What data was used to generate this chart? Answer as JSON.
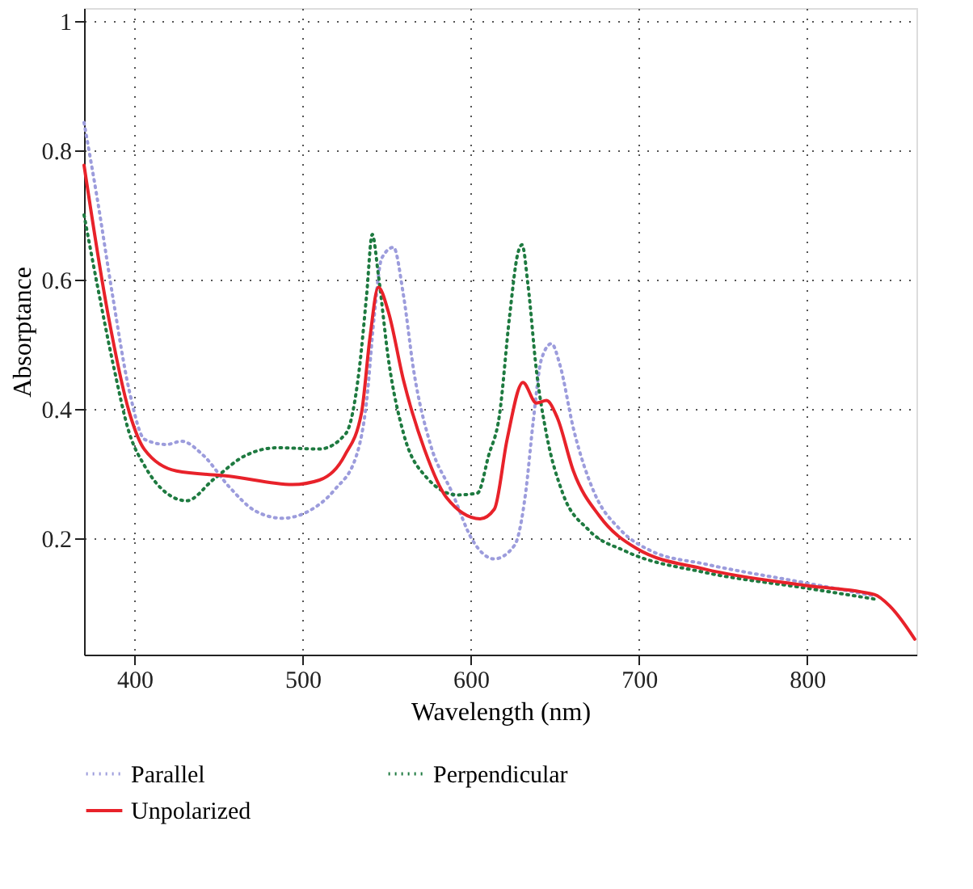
{
  "chart_data": {
    "type": "line",
    "xlabel": "Wavelength (nm)",
    "ylabel": "Absorptance",
    "xlim": [
      370,
      865
    ],
    "ylim": [
      0.02,
      1.02
    ],
    "xticks": [
      400,
      500,
      600,
      700,
      800
    ],
    "yticks": [
      0.2,
      0.4,
      0.6,
      0.8,
      1
    ],
    "grid": true,
    "legend": "bottom",
    "series": [
      {
        "name": "Parallel",
        "color": "#9c9cdc",
        "line_style": "dotted",
        "x": [
          370,
          378,
          387,
          397,
          406,
          419,
          428,
          441,
          456.5,
          472,
          488,
          503.6,
          519,
          532,
          538,
          542.5,
          547,
          554,
          560,
          566,
          576,
          589,
          601,
          614,
          626,
          632.6,
          637,
          642,
          648,
          653,
          661,
          673.5,
          689,
          707.6,
          739.5,
          799,
          840
        ],
        "values": [
          0.843,
          0.723,
          0.575,
          0.427,
          0.353,
          0.345,
          0.35,
          0.328,
          0.279,
          0.242,
          0.231,
          0.242,
          0.275,
          0.328,
          0.411,
          0.542,
          0.633,
          0.65,
          0.575,
          0.46,
          0.345,
          0.27,
          0.197,
          0.168,
          0.189,
          0.27,
          0.378,
          0.477,
          0.501,
          0.468,
          0.37,
          0.27,
          0.213,
          0.18,
          0.16,
          0.131,
          0.111
        ]
      },
      {
        "name": "Perpendicular",
        "color": "#1e7a40",
        "line_style": "dotted",
        "x": [
          370,
          378,
          387.4,
          397,
          406,
          419,
          431,
          447,
          466,
          485,
          510,
          525.7,
          533.6,
          538,
          541.4,
          545,
          551,
          560,
          573,
          592,
          604,
          610.6,
          617,
          623,
          628,
          630.5,
          634,
          639,
          645,
          654.6,
          670,
          692,
          739.5,
          799,
          840
        ],
        "values": [
          0.7,
          0.59,
          0.468,
          0.362,
          0.312,
          0.27,
          0.258,
          0.291,
          0.328,
          0.34,
          0.338,
          0.362,
          0.46,
          0.575,
          0.67,
          0.608,
          0.477,
          0.362,
          0.296,
          0.267,
          0.27,
          0.328,
          0.39,
          0.542,
          0.641,
          0.654,
          0.592,
          0.46,
          0.361,
          0.27,
          0.213,
          0.18,
          0.147,
          0.123,
          0.106
        ]
      },
      {
        "name": "Unpolarized",
        "color": "#e8222a",
        "line_style": "solid",
        "x": [
          370,
          384,
          397,
          406,
          425,
          456.5,
          494,
          510,
          525,
          535,
          540,
          545,
          551,
          560,
          572.5,
          585.5,
          605.5,
          614,
          621.6,
          631,
          639,
          645,
          651.5,
          661,
          676.6,
          698.7,
          739.5,
          799.3,
          840,
          849.6,
          864
        ],
        "values": [
          0.777,
          0.55,
          0.394,
          0.337,
          0.304,
          0.296,
          0.283,
          0.29,
          0.328,
          0.394,
          0.51,
          0.588,
          0.55,
          0.444,
          0.337,
          0.263,
          0.23,
          0.245,
          0.353,
          0.441,
          0.409,
          0.413,
          0.386,
          0.304,
          0.234,
          0.184,
          0.152,
          0.127,
          0.113,
          0.094,
          0.044
        ]
      }
    ]
  }
}
